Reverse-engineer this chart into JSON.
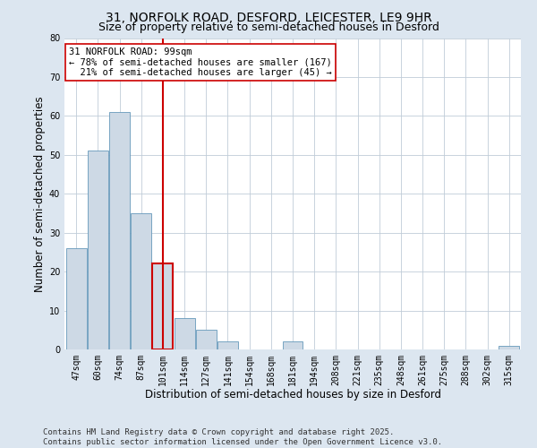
{
  "title_line1": "31, NORFOLK ROAD, DESFORD, LEICESTER, LE9 9HR",
  "title_line2": "Size of property relative to semi-detached houses in Desford",
  "xlabel": "Distribution of semi-detached houses by size in Desford",
  "ylabel": "Number of semi-detached properties",
  "categories": [
    "47sqm",
    "60sqm",
    "74sqm",
    "87sqm",
    "101sqm",
    "114sqm",
    "127sqm",
    "141sqm",
    "154sqm",
    "168sqm",
    "181sqm",
    "194sqm",
    "208sqm",
    "221sqm",
    "235sqm",
    "248sqm",
    "261sqm",
    "275sqm",
    "288sqm",
    "302sqm",
    "315sqm"
  ],
  "values": [
    26,
    51,
    61,
    35,
    22,
    8,
    5,
    2,
    0,
    0,
    2,
    0,
    0,
    0,
    0,
    0,
    0,
    0,
    0,
    0,
    1
  ],
  "bar_color": "#cdd9e5",
  "bar_edge_color": "#6699bb",
  "highlight_bar_index": 4,
  "highlight_edge_color": "#cc0000",
  "vline_color": "#cc0000",
  "annotation_text": "31 NORFOLK ROAD: 99sqm\n← 78% of semi-detached houses are smaller (167)\n  21% of semi-detached houses are larger (45) →",
  "annotation_box_color": "#ffffff",
  "annotation_box_edge": "#cc0000",
  "ylim": [
    0,
    80
  ],
  "yticks": [
    0,
    10,
    20,
    30,
    40,
    50,
    60,
    70,
    80
  ],
  "footer_line1": "Contains HM Land Registry data © Crown copyright and database right 2025.",
  "footer_line2": "Contains public sector information licensed under the Open Government Licence v3.0.",
  "fig_background_color": "#dce6f0",
  "plot_background_color": "#ffffff",
  "grid_color": "#c0ccd8",
  "title_fontsize": 10,
  "subtitle_fontsize": 9,
  "axis_label_fontsize": 8.5,
  "tick_fontsize": 7,
  "footer_fontsize": 6.5,
  "annotation_fontsize": 7.5
}
